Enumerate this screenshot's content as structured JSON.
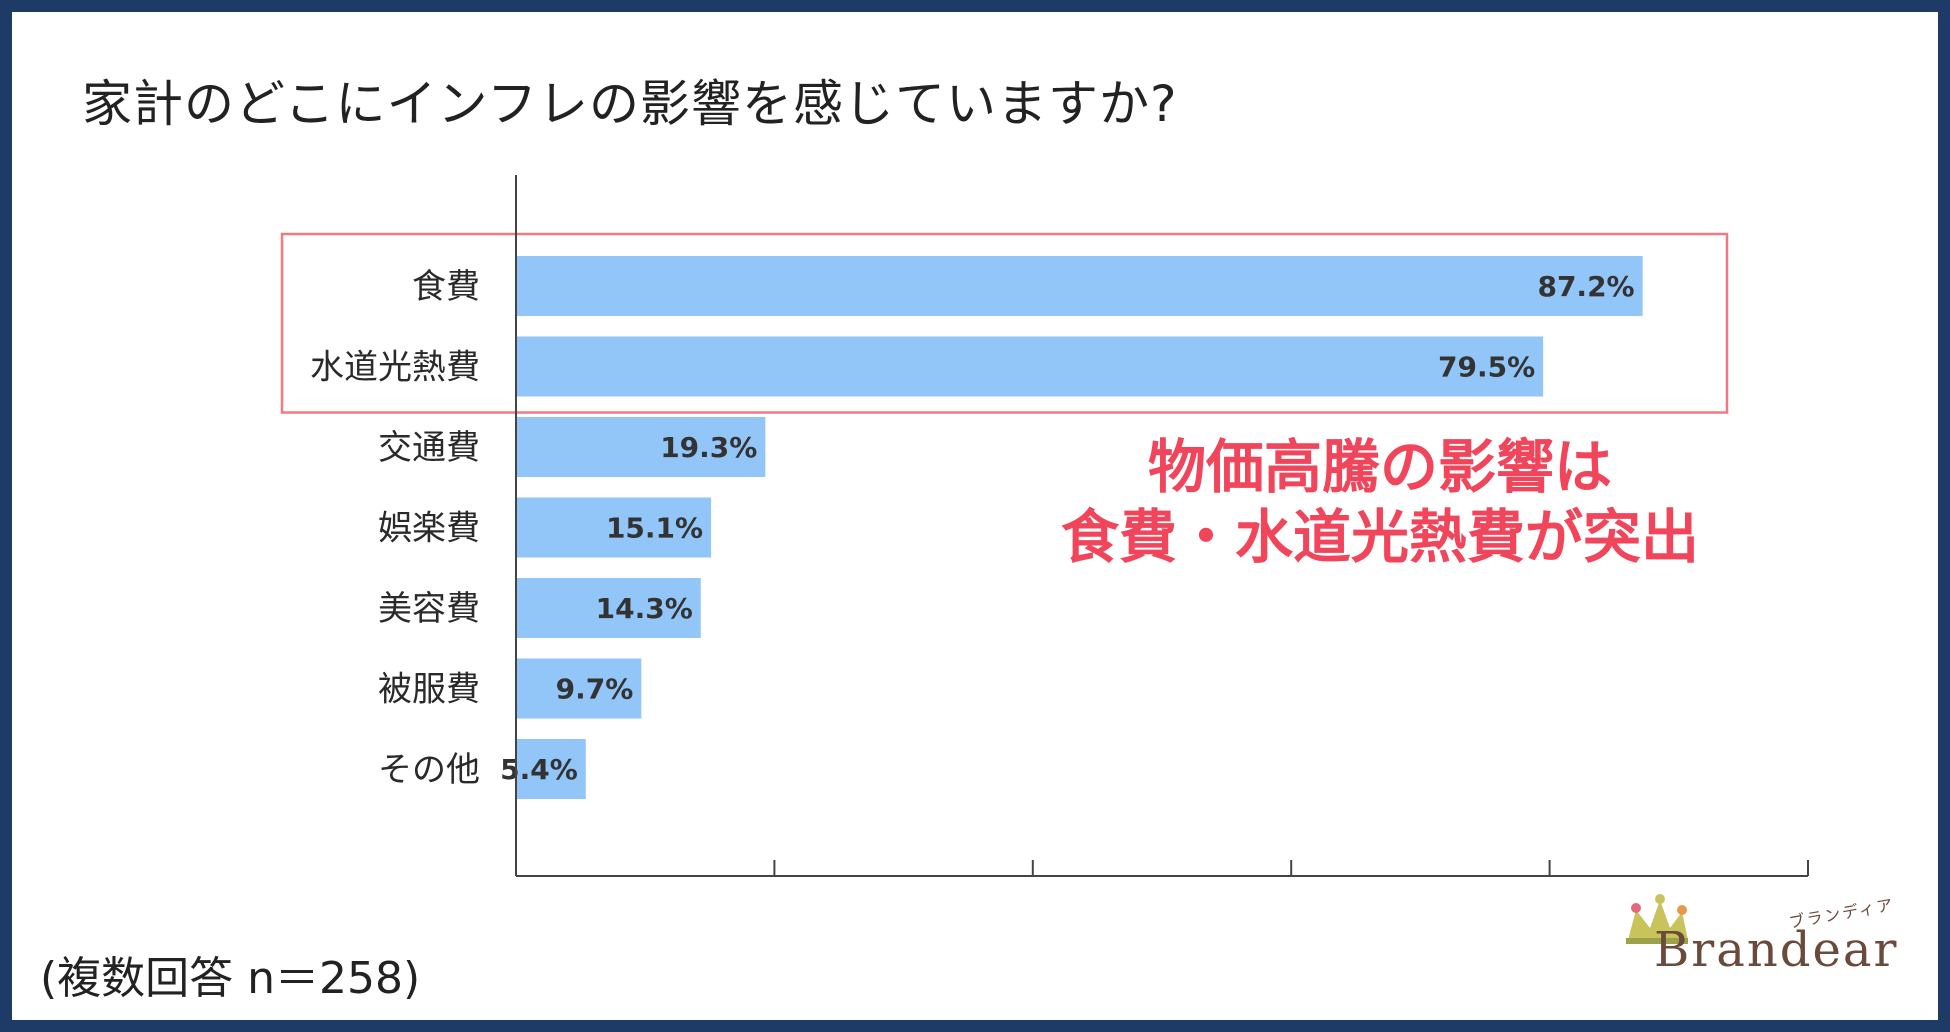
{
  "title": "家計のどこにインフレの影響を感じていますか?",
  "chart_data": {
    "type": "bar",
    "orientation": "horizontal",
    "categories": [
      "食費",
      "水道光熱費",
      "交通費",
      "娯楽費",
      "美容費",
      "被服費",
      "その他"
    ],
    "values": [
      87.2,
      79.5,
      19.3,
      15.1,
      14.3,
      9.7,
      5.4
    ],
    "value_labels": [
      "87.2%",
      "79.5%",
      "19.3%",
      "15.1%",
      "14.3%",
      "9.7%",
      "5.4%"
    ],
    "xlim": [
      0,
      100
    ],
    "grid": false,
    "highlighted_categories": [
      "食費",
      "水道光熱費"
    ]
  },
  "callout": {
    "line1": "物価高騰の影響は",
    "line2": "食費・水道光熱費が突出"
  },
  "footnote": "(複数回答 n＝258)",
  "logo": {
    "word": "Brandear",
    "kana": "ブランディア"
  },
  "colors": {
    "frame": "#1e3a66",
    "bar": "#92c5f8",
    "highlight_box": "#f07a80",
    "callout_text": "#f0455a"
  }
}
